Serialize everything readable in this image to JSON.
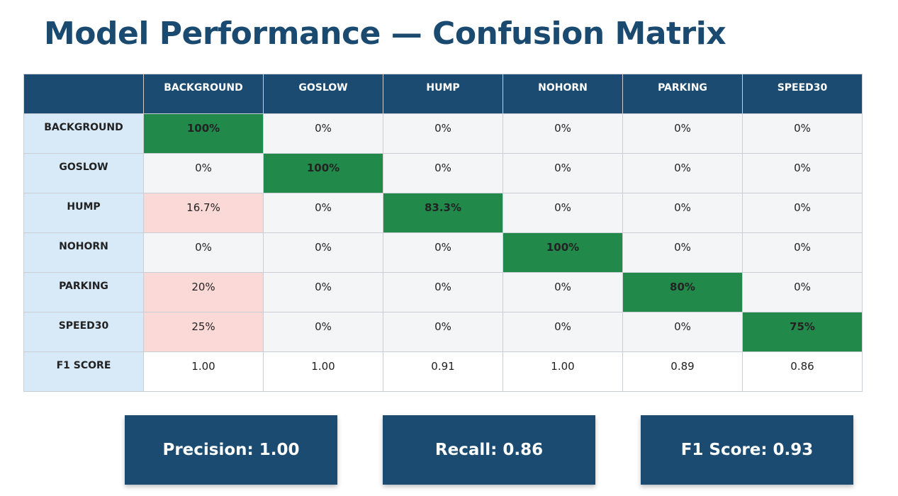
{
  "title": "Model Performance — Confusion Matrix",
  "colors": {
    "header_bg": "#1b4b71",
    "row_header_bg": "#d8eaf8",
    "diagonal": "#218a4b",
    "error": "#fad9d7",
    "normal": "#f4f5f7",
    "title": "#1a4a70"
  },
  "chart_data": {
    "type": "table",
    "columns": [
      "BACKGROUND",
      "GOSLOW",
      "HUMP",
      "NOHORN",
      "PARKING",
      "SPEED30"
    ],
    "rows": [
      {
        "label": "BACKGROUND",
        "values": [
          "100%",
          "0%",
          "0%",
          "0%",
          "0%",
          "0%"
        ]
      },
      {
        "label": "GOSLOW",
        "values": [
          "0%",
          "100%",
          "0%",
          "0%",
          "0%",
          "0%"
        ]
      },
      {
        "label": "HUMP",
        "values": [
          "16.7%",
          "0%",
          "83.3%",
          "0%",
          "0%",
          "0%"
        ]
      },
      {
        "label": "NOHORN",
        "values": [
          "0%",
          "0%",
          "0%",
          "100%",
          "0%",
          "0%"
        ]
      },
      {
        "label": "PARKING",
        "values": [
          "20%",
          "0%",
          "0%",
          "0%",
          "80%",
          "0%"
        ]
      },
      {
        "label": "SPEED30",
        "values": [
          "25%",
          "0%",
          "0%",
          "0%",
          "0%",
          "75%"
        ]
      }
    ],
    "f1_row": {
      "label": "F1 SCORE",
      "values": [
        "1.00",
        "1.00",
        "0.91",
        "1.00",
        "0.89",
        "0.86"
      ]
    }
  },
  "metrics": [
    {
      "label": "Precision: 1.00"
    },
    {
      "label": "Recall: 0.86"
    },
    {
      "label": "F1 Score: 0.93"
    }
  ]
}
